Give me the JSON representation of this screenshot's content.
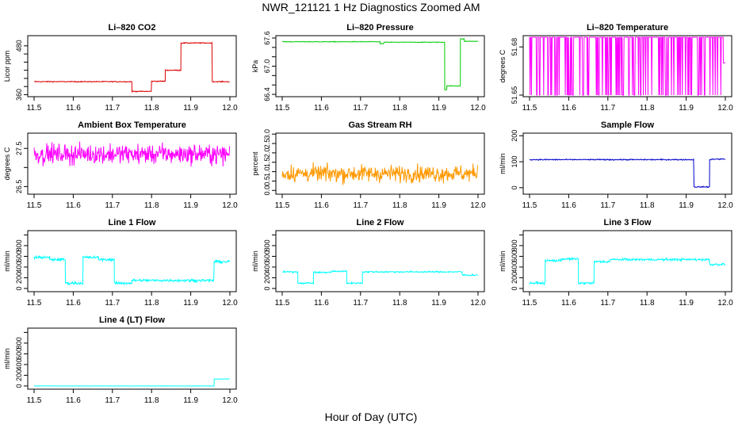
{
  "title": "NWR_121121  1 Hz Diagnostics Zoomed AM",
  "xlabel": "Hour of Day (UTC)",
  "colors": {
    "co2": "#dd0000",
    "pressure": "#00cc00",
    "temperature": "#ff00ff",
    "rh": "#ff9900",
    "sample_flow": "#0000cc",
    "line_flow": "#00ffff",
    "axis": "#000000"
  },
  "chart_data": [
    {
      "type": "line",
      "title": "Li–820 CO2",
      "ylabel": "Licor ppm",
      "color": "#dd0000",
      "xlim": [
        11.5,
        12.0
      ],
      "ylim": [
        355,
        505
      ],
      "yticks": [
        360,
        380,
        400,
        420,
        440,
        460,
        480
      ],
      "ytick_labels": [
        "360",
        "",
        "",
        "",
        "",
        "",
        "480"
      ],
      "xticks": [
        11.5,
        11.6,
        11.7,
        11.8,
        11.9,
        12.0
      ],
      "xtick_labels": [
        "11.5",
        "11.6",
        "11.7",
        "11.8",
        "11.9",
        "12.0"
      ],
      "noise": 0.8,
      "segments": [
        [
          11.5,
          11.75,
          392
        ],
        [
          11.75,
          11.8,
          368
        ],
        [
          11.8,
          11.835,
          393
        ],
        [
          11.835,
          11.875,
          420
        ],
        [
          11.875,
          11.955,
          487
        ],
        [
          11.955,
          12.0,
          392
        ]
      ]
    },
    {
      "type": "line",
      "title": "Li–820 Pressure",
      "ylabel": "kPa",
      "color": "#00cc00",
      "xlim": [
        11.5,
        12.0
      ],
      "ylim": [
        66.35,
        67.65
      ],
      "yticks": [
        66.4,
        66.6,
        66.8,
        67.0,
        67.2,
        67.4,
        67.6
      ],
      "ytick_labels": [
        "66.4",
        "",
        "",
        "67.0",
        "",
        "",
        "67.6"
      ],
      "xticks": [
        11.5,
        11.6,
        11.7,
        11.8,
        11.9,
        12.0
      ],
      "xtick_labels": [
        "11.5",
        "11.6",
        "11.7",
        "11.8",
        "11.9",
        "12.0"
      ],
      "noise": 0.005,
      "segments": [
        [
          11.5,
          11.75,
          67.52
        ],
        [
          11.75,
          11.76,
          67.48
        ],
        [
          11.76,
          11.915,
          67.51
        ],
        [
          11.915,
          11.92,
          66.5
        ],
        [
          11.92,
          11.955,
          66.58
        ],
        [
          11.955,
          11.965,
          67.58
        ],
        [
          11.965,
          12.0,
          67.53
        ]
      ]
    },
    {
      "type": "line",
      "title": "Li–820 Temperature",
      "ylabel": "degrees C",
      "color": "#ff00ff",
      "xlim": [
        11.5,
        12.0
      ],
      "ylim": [
        51.649,
        51.687
      ],
      "yticks": [
        51.65,
        51.68
      ],
      "ytick_labels": [
        "51.65",
        "51.68"
      ],
      "xticks": [
        11.5,
        11.6,
        11.7,
        11.8,
        11.9,
        12.0
      ],
      "xtick_labels": [
        "11.5",
        "11.6",
        "11.7",
        "11.8",
        "11.9",
        "12.0"
      ],
      "binary": [
        51.65,
        51.686
      ],
      "segments": [
        [
          11.5,
          11.995,
          51.686
        ],
        [
          11.995,
          12.0,
          51.67
        ]
      ]
    },
    {
      "type": "line",
      "title": "Ambient Box Temperature",
      "ylabel": "degrees C",
      "color": "#ff00ff",
      "xlim": [
        11.5,
        12.0
      ],
      "ylim": [
        26.3,
        27.9
      ],
      "yticks": [
        26.5,
        27.0,
        27.5
      ],
      "ytick_labels": [
        "26.5",
        "",
        "27.5"
      ],
      "xticks": [
        11.5,
        11.6,
        11.7,
        11.8,
        11.9,
        12.0
      ],
      "xtick_labels": [
        "11.5",
        "11.6",
        "11.7",
        "11.8",
        "11.9",
        "12.0"
      ],
      "noise": 0.18,
      "segments": [
        [
          11.5,
          12.0,
          27.35
        ]
      ]
    },
    {
      "type": "line",
      "title": "Gas Stream RH",
      "ylabel": "percent",
      "color": "#ff9900",
      "xlim": [
        11.5,
        12.0
      ],
      "ylim": [
        -0.2,
        3.05
      ],
      "yticks": [
        0.0,
        0.5,
        1.0,
        1.5,
        2.0,
        2.5,
        3.0
      ],
      "ytick_labels": [
        "0.0",
        "0.5",
        "1.0",
        "1.5",
        "2.0",
        "2.5",
        "3.0"
      ],
      "xticks": [
        11.5,
        11.6,
        11.7,
        11.8,
        11.9,
        12.0
      ],
      "xtick_labels": [
        "11.5",
        "11.6",
        "11.7",
        "11.8",
        "11.9",
        "12.0"
      ],
      "noise": 0.32,
      "segments": [
        [
          11.5,
          12.0,
          0.9
        ]
      ]
    },
    {
      "type": "line",
      "title": "Sample Flow",
      "ylabel": "ml/min",
      "color": "#0000cc",
      "xlim": [
        11.5,
        12.0
      ],
      "ylim": [
        -25,
        210
      ],
      "yticks": [
        0,
        100,
        200
      ],
      "ytick_labels": [
        "0",
        "100",
        "200"
      ],
      "xticks": [
        11.5,
        11.6,
        11.7,
        11.8,
        11.9,
        12.0
      ],
      "xtick_labels": [
        "11.5",
        "11.6",
        "11.7",
        "11.8",
        "11.9",
        "12.0"
      ],
      "noise": 1.5,
      "segments": [
        [
          11.5,
          11.92,
          108
        ],
        [
          11.92,
          11.96,
          3
        ],
        [
          11.96,
          11.965,
          108
        ],
        [
          11.965,
          12.0,
          110
        ]
      ]
    },
    {
      "type": "line",
      "title": "Line 1 Flow",
      "ylabel": "ml/min",
      "color": "#00ffff",
      "xlim": [
        11.5,
        12.0
      ],
      "ylim": [
        -60,
        1080
      ],
      "yticks": [
        0,
        200,
        400,
        600,
        800,
        1000
      ],
      "ytick_labels": [
        "0",
        "200",
        "400",
        "600",
        "800",
        ""
      ],
      "xticks": [
        11.5,
        11.6,
        11.7,
        11.8,
        11.9,
        12.0
      ],
      "xtick_labels": [
        "11.5",
        "11.6",
        "11.7",
        "11.8",
        "11.9",
        "12.0"
      ],
      "noise": 18,
      "segments": [
        [
          11.5,
          11.54,
          580
        ],
        [
          11.54,
          11.58,
          540
        ],
        [
          11.58,
          11.625,
          100
        ],
        [
          11.625,
          11.665,
          580
        ],
        [
          11.665,
          11.705,
          540
        ],
        [
          11.705,
          11.75,
          100
        ],
        [
          11.75,
          11.96,
          150
        ],
        [
          11.96,
          12.0,
          500
        ]
      ]
    },
    {
      "type": "line",
      "title": "Line 2 Flow",
      "ylabel": "ml/min",
      "color": "#00ffff",
      "xlim": [
        11.5,
        12.0
      ],
      "ylim": [
        -60,
        1080
      ],
      "yticks": [
        0,
        200,
        400,
        600,
        800,
        1000
      ],
      "ytick_labels": [
        "0",
        "200",
        "400",
        "600",
        "800",
        ""
      ],
      "xticks": [
        11.5,
        11.6,
        11.7,
        11.8,
        11.9,
        12.0
      ],
      "xtick_labels": [
        "11.5",
        "11.6",
        "11.7",
        "11.8",
        "11.9",
        "12.0"
      ],
      "noise": 10,
      "segments": [
        [
          11.5,
          11.54,
          310
        ],
        [
          11.54,
          11.58,
          100
        ],
        [
          11.58,
          11.625,
          300
        ],
        [
          11.625,
          11.665,
          320
        ],
        [
          11.665,
          11.705,
          100
        ],
        [
          11.705,
          11.96,
          310
        ],
        [
          11.96,
          12.0,
          250
        ]
      ]
    },
    {
      "type": "line",
      "title": "Line 3 Flow",
      "ylabel": "ml/min",
      "color": "#00ffff",
      "xlim": [
        11.5,
        12.0
      ],
      "ylim": [
        -60,
        1080
      ],
      "yticks": [
        0,
        200,
        400,
        600,
        800,
        1000
      ],
      "ytick_labels": [
        "0",
        "200",
        "400",
        "600",
        "800",
        ""
      ],
      "xticks": [
        11.5,
        11.6,
        11.7,
        11.8,
        11.9,
        12.0
      ],
      "xtick_labels": [
        "11.5",
        "11.6",
        "11.7",
        "11.8",
        "11.9",
        "12.0"
      ],
      "noise": 15,
      "segments": [
        [
          11.5,
          11.54,
          100
        ],
        [
          11.54,
          11.58,
          520
        ],
        [
          11.58,
          11.625,
          550
        ],
        [
          11.625,
          11.665,
          100
        ],
        [
          11.665,
          11.705,
          500
        ],
        [
          11.705,
          11.96,
          540
        ],
        [
          11.96,
          12.0,
          450
        ]
      ]
    },
    {
      "type": "line",
      "title": "Line 4 (LT) Flow",
      "ylabel": "ml/min",
      "color": "#00ffff",
      "xlim": [
        11.5,
        12.0
      ],
      "ylim": [
        -60,
        1080
      ],
      "yticks": [
        0,
        200,
        400,
        600,
        800,
        1000
      ],
      "ytick_labels": [
        "0",
        "200",
        "400",
        "600",
        "800",
        ""
      ],
      "xticks": [
        11.5,
        11.6,
        11.7,
        11.8,
        11.9,
        12.0
      ],
      "xtick_labels": [
        "11.5",
        "11.6",
        "11.7",
        "11.8",
        "11.9",
        "12.0"
      ],
      "noise": 2,
      "segments": [
        [
          11.5,
          11.96,
          0
        ],
        [
          11.96,
          12.0,
          130
        ]
      ]
    }
  ]
}
